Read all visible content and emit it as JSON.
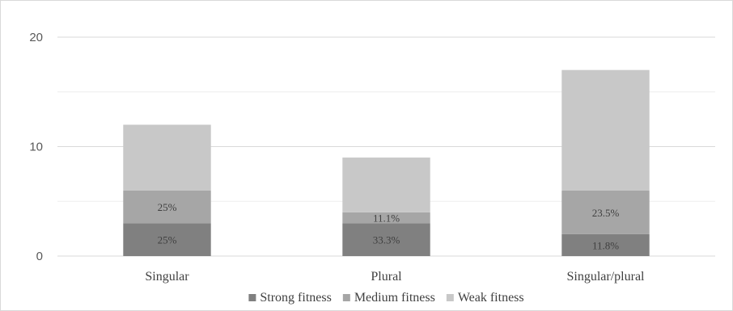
{
  "chart_data": {
    "type": "bar",
    "stacked": true,
    "title": "",
    "xlabel": "",
    "ylabel": "",
    "categories": [
      "Singular",
      "Plural",
      "Singular/plural"
    ],
    "series": [
      {
        "name": "Strong fitness",
        "values": [
          3,
          3,
          2
        ],
        "color": "#808080",
        "labels": [
          "25%",
          "33.3%",
          "11.8%"
        ]
      },
      {
        "name": "Medium fitness",
        "values": [
          3,
          1,
          4
        ],
        "color": "#a6a6a6",
        "labels": [
          "25%",
          "11.1%",
          "23.5%"
        ]
      },
      {
        "name": "Weak fitness",
        "values": [
          6,
          5,
          11
        ],
        "color": "#c8c8c8",
        "labels": [
          "",
          "",
          ""
        ]
      }
    ],
    "ylim": [
      0,
      20
    ],
    "yticks": [
      0,
      10,
      20
    ],
    "grid": true,
    "legend": "bottom"
  }
}
